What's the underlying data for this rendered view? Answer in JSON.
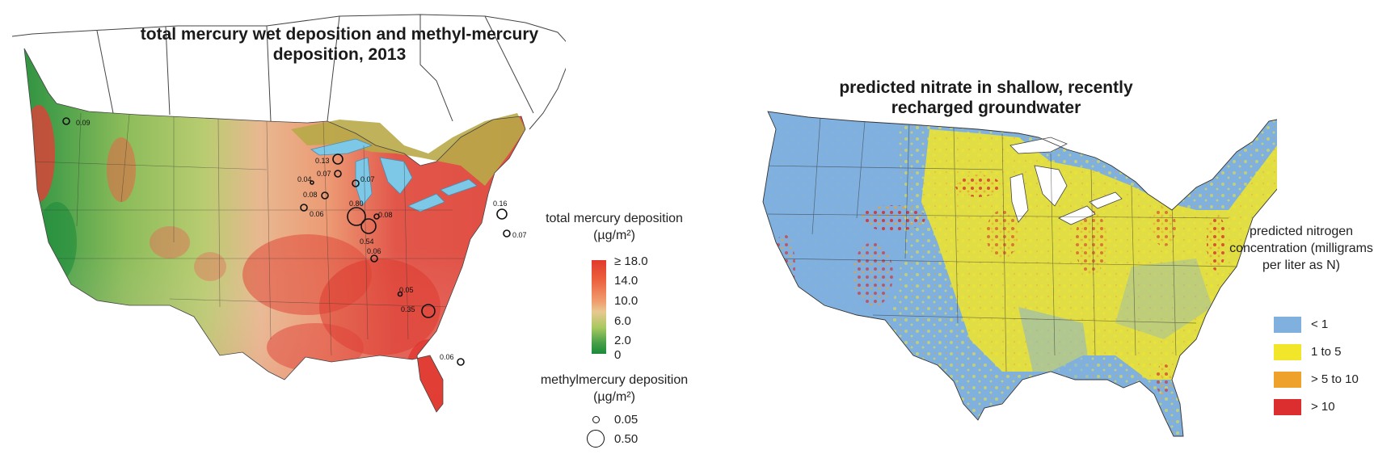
{
  "left_map": {
    "title": "total mercury wet deposition and methyl-mercury deposition, 2013",
    "legend_title": "total mercury deposition (µg/m²)",
    "legend_ticks": [
      "≥ 18.0",
      "14.0",
      "10.0",
      "6.0",
      "2.0",
      "0"
    ],
    "colorbar_colors": [
      "#e03a2c",
      "#f08c5a",
      "#f0c890",
      "#9fc860",
      "#1a8a3a"
    ],
    "methyl_legend_title": "methylmercury deposition (µg/m²)",
    "methyl_legend_items": [
      "0.05",
      "0.50"
    ],
    "site_labels": [
      "0.09",
      "0.13",
      "0.07",
      "0.04",
      "0.07",
      "0.08",
      "0.06",
      "0.80",
      "0.08",
      "0.54",
      "0.06",
      "0.05",
      "0.35",
      "0.16",
      "0.07",
      "0.06"
    ]
  },
  "right_map": {
    "title": "predicted nitrate in shallow, recently recharged groundwater",
    "legend_title": "predicted nitrogen concentration (milligrams per liter as N)",
    "legend_items": [
      {
        "label": "< 1",
        "color": "#7fb0de"
      },
      {
        "label": "1 to 5",
        "color": "#f2e62a"
      },
      {
        "label": "> 5 to 10",
        "color": "#eea22c"
      },
      {
        "label": "> 10",
        "color": "#dc2e2e"
      }
    ]
  }
}
